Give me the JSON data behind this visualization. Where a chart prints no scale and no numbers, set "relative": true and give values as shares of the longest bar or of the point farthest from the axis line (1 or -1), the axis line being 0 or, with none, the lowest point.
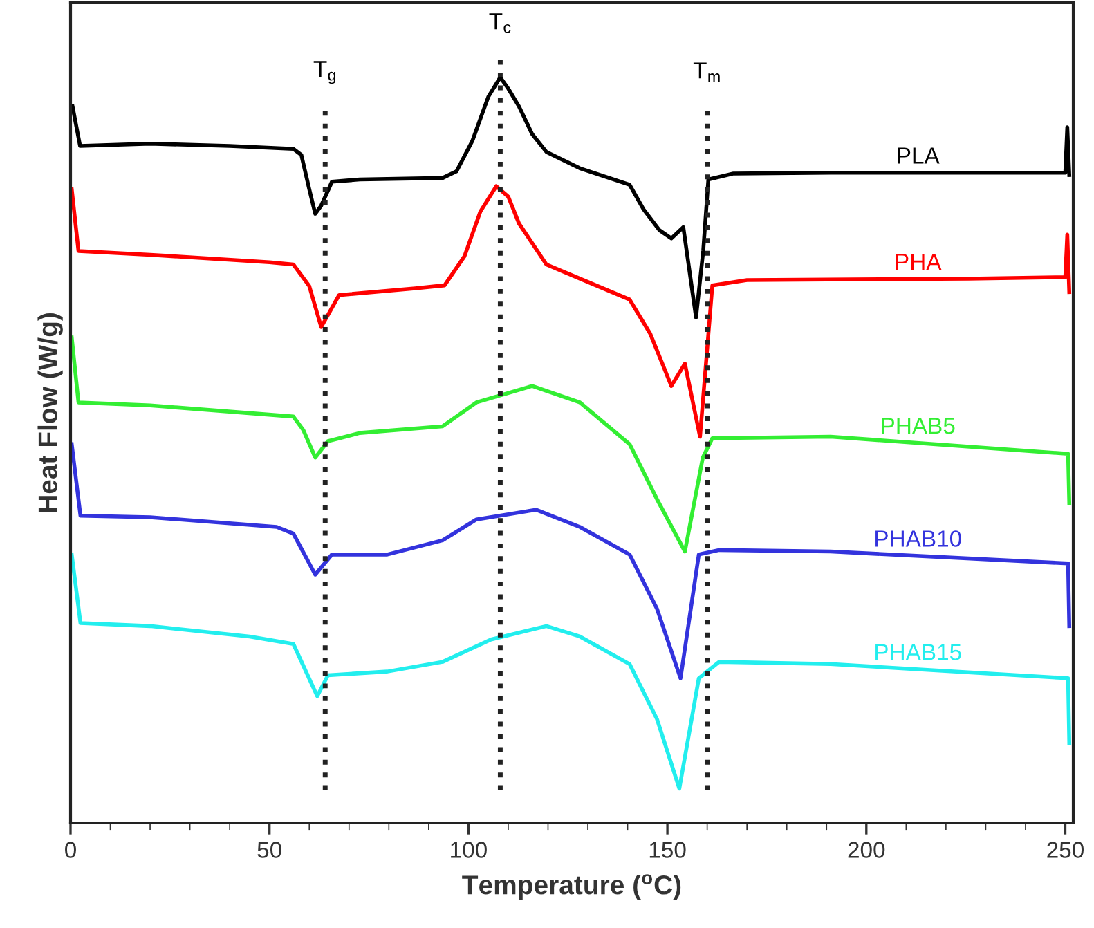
{
  "chart_data": {
    "type": "line",
    "relative": true,
    "xlabel": "Temperature ($^{o}$C)",
    "ylabel": "Heat Flow (W/g)",
    "xlim": [
      0,
      252
    ],
    "xticks": [
      0,
      50,
      100,
      150,
      200,
      250
    ],
    "grid": false,
    "legend": false,
    "line_style": "solid",
    "marker": "none",
    "series": [
      {
        "name": "PLA",
        "color": "#000000",
        "x": [
          0.5,
          2.4,
          20,
          40,
          56,
          58,
          60,
          61.5,
          63,
          65.7,
          72.7,
          93.5,
          97,
          101,
          105,
          108,
          110,
          112.7,
          116,
          119.6,
          128,
          140.5,
          144,
          148,
          151,
          154,
          157.2,
          159,
          160.3,
          166.6,
          191,
          250,
          250.5,
          251
        ],
        "values": [
          0.961,
          0.908,
          0.911,
          0.908,
          0.904,
          0.896,
          0.85,
          0.817,
          0.828,
          0.86,
          0.863,
          0.865,
          0.874,
          0.915,
          0.974,
          1,
          0.985,
          0.961,
          0.924,
          0.9,
          0.878,
          0.856,
          0.823,
          0.795,
          0.784,
          0.799,
          0.678,
          0.767,
          0.863,
          0.871,
          0.872,
          0.872,
          0.933,
          0.869
        ]
      },
      {
        "name": "PHA",
        "color": "#ff0000",
        "x": [
          0.3,
          2,
          20,
          50,
          56,
          60,
          63,
          67.5,
          86.6,
          94,
          99,
          103,
          107,
          110,
          112.7,
          119.6,
          128,
          140.5,
          145.7,
          151,
          154.4,
          158.2,
          161.3,
          170,
          225.7,
          250,
          250.5,
          251
        ],
        "values": [
          0.85,
          0.767,
          0.762,
          0.752,
          0.749,
          0.72,
          0.665,
          0.708,
          0.717,
          0.721,
          0.76,
          0.82,
          0.854,
          0.84,
          0.804,
          0.749,
          0.73,
          0.702,
          0.656,
          0.586,
          0.616,
          0.518,
          0.721,
          0.728,
          0.73,
          0.732,
          0.789,
          0.712
        ]
      },
      {
        "name": "PHAB5",
        "color": "#33ee33",
        "x": [
          0.3,
          2,
          20,
          56,
          58.5,
          61.5,
          64.7,
          72.7,
          93.5,
          102,
          116,
          128,
          140.5,
          147.4,
          154.4,
          158.9,
          161.3,
          191,
          250.7,
          251
        ],
        "values": [
          0.651,
          0.564,
          0.56,
          0.545,
          0.527,
          0.49,
          0.512,
          0.523,
          0.532,
          0.564,
          0.586,
          0.564,
          0.508,
          0.434,
          0.364,
          0.49,
          0.516,
          0.518,
          0.495,
          0.429
        ]
      },
      {
        "name": "PHAB10",
        "color": "#3333dd",
        "x": [
          0.3,
          2.5,
          20,
          51.8,
          56,
          61.5,
          65.7,
          79.6,
          93.5,
          102,
          117,
          128,
          140.5,
          147.4,
          153.3,
          157.9,
          163,
          191,
          250.7,
          251
        ],
        "values": [
          0.508,
          0.412,
          0.41,
          0.397,
          0.388,
          0.333,
          0.36,
          0.36,
          0.379,
          0.407,
          0.42,
          0.397,
          0.36,
          0.287,
          0.194,
          0.36,
          0.366,
          0.364,
          0.348,
          0.264
        ]
      },
      {
        "name": "PHAB15",
        "color": "#22eeee",
        "x": [
          0.3,
          2.5,
          20,
          45,
          56,
          62,
          64.7,
          79.6,
          93.5,
          105.7,
          119.6,
          128,
          140.5,
          147.4,
          153,
          157.9,
          163,
          191,
          250.7,
          251
        ],
        "values": [
          0.36,
          0.268,
          0.264,
          0.25,
          0.24,
          0.17,
          0.198,
          0.203,
          0.216,
          0.246,
          0.264,
          0.25,
          0.213,
          0.139,
          0.046,
          0.194,
          0.216,
          0.213,
          0.194,
          0.107
        ]
      }
    ],
    "ref_lines": [
      {
        "axis": "x",
        "value": 64,
        "label": "T$_{g}$",
        "color": "#222222",
        "line_style": "dotted"
      },
      {
        "axis": "x",
        "value": 108,
        "label": "T$_{c}$",
        "color": "#222222",
        "line_style": "dotted"
      },
      {
        "axis": "x",
        "value": 160,
        "label": "T$_{m}$",
        "color": "#222222",
        "line_style": "dotted"
      }
    ]
  }
}
